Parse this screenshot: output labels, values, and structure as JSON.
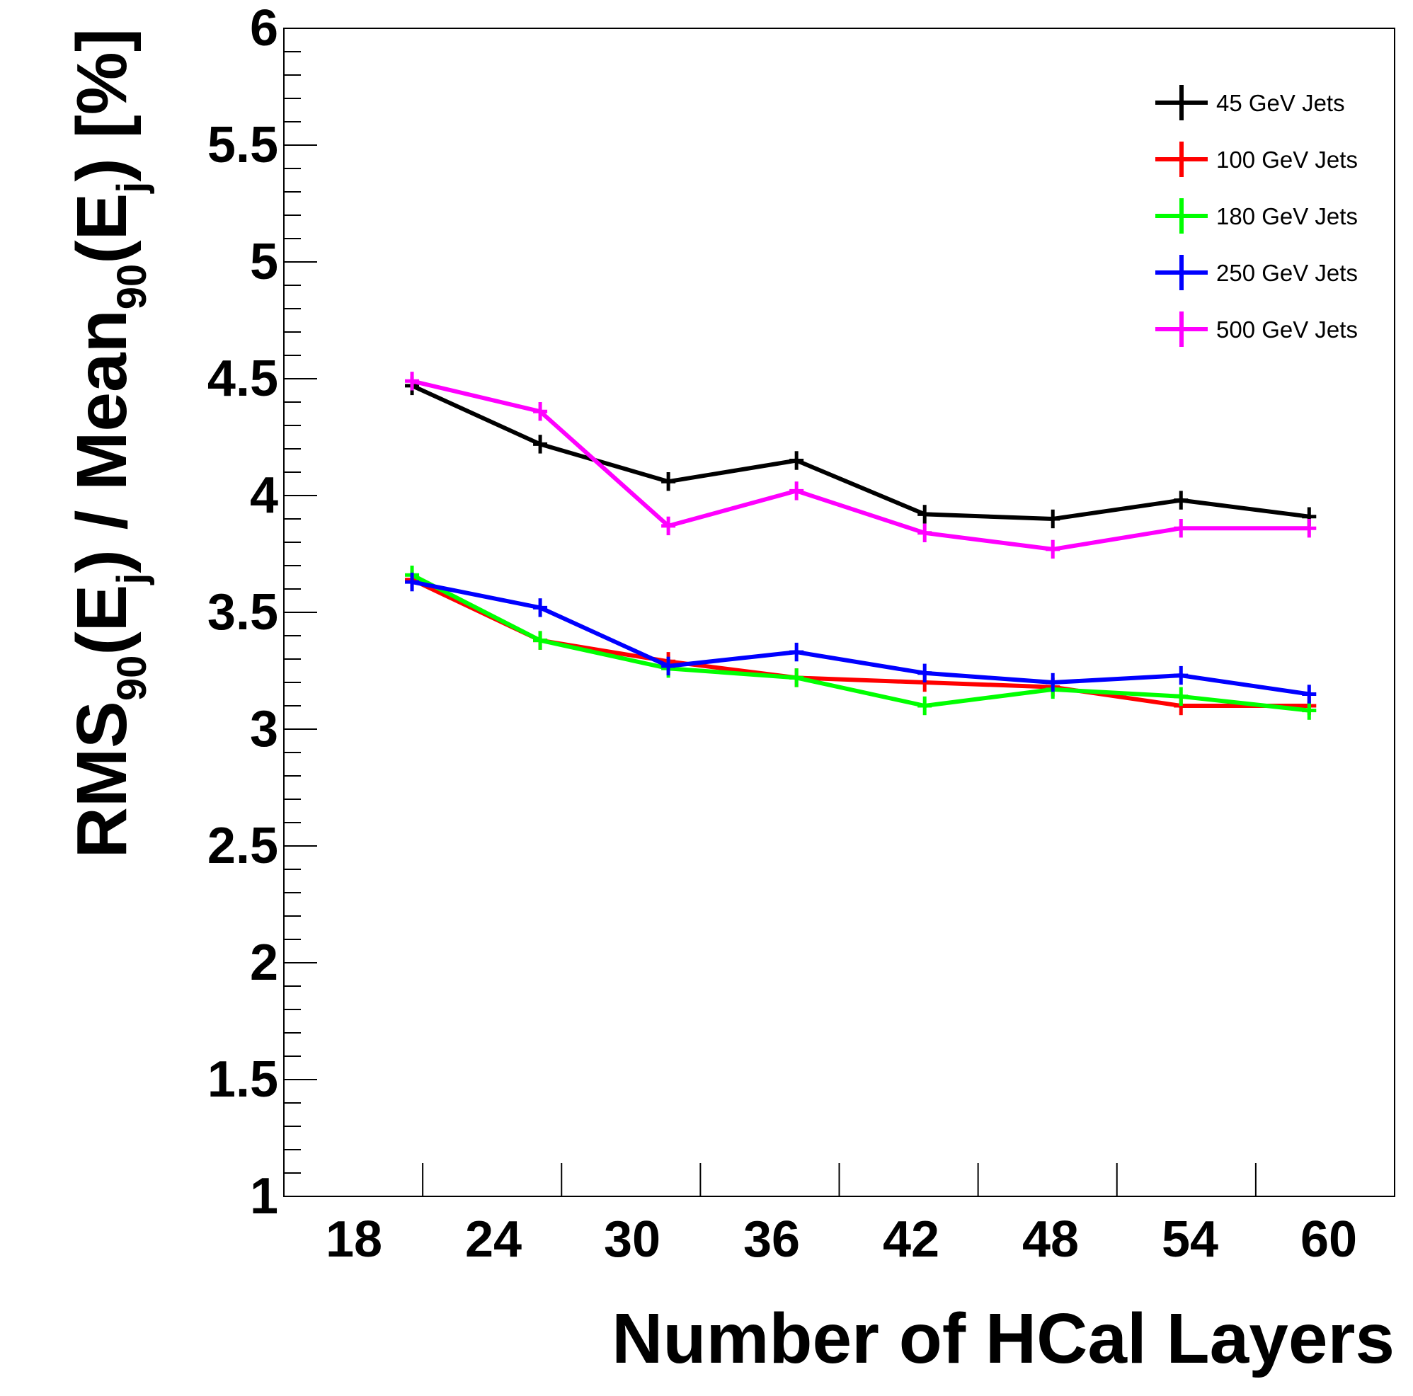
{
  "chart_data": {
    "type": "line",
    "xlabel": "Number of HCal Layers",
    "ylabel": {
      "parts": [
        "RMS",
        "90",
        "(E",
        "j",
        ") / Mean",
        "90",
        "(E",
        "j",
        ") [%]"
      ]
    },
    "xlim": [
      14,
      66
    ],
    "ylim": [
      1,
      6
    ],
    "x_ticks": [
      "18",
      "24",
      "30",
      "36",
      "42",
      "48",
      "54",
      "60"
    ],
    "y_ticks": [
      "1",
      "1.5",
      "2",
      "2.5",
      "3",
      "3.5",
      "4",
      "4.5",
      "5",
      "5.5",
      "6"
    ],
    "x": [
      20,
      26,
      32,
      38,
      44,
      50,
      56,
      62
    ],
    "grid": false,
    "legend_position": "top-right",
    "series": [
      {
        "name": "45 GeV Jets",
        "color": "#000000",
        "values": [
          4.47,
          4.22,
          4.06,
          4.15,
          3.92,
          3.9,
          3.98,
          3.91
        ],
        "errors": [
          0.04,
          0.04,
          0.04,
          0.04,
          0.04,
          0.04,
          0.04,
          0.04
        ]
      },
      {
        "name": "100 GeV Jets",
        "color": "#ff0000",
        "values": [
          3.64,
          3.38,
          3.29,
          3.22,
          3.2,
          3.18,
          3.1,
          3.1
        ],
        "errors": [
          0.04,
          0.04,
          0.04,
          0.04,
          0.04,
          0.04,
          0.04,
          0.04
        ]
      },
      {
        "name": "180 GeV Jets",
        "color": "#00ff00",
        "values": [
          3.66,
          3.38,
          3.26,
          3.22,
          3.1,
          3.17,
          3.14,
          3.08
        ],
        "errors": [
          0.04,
          0.04,
          0.04,
          0.04,
          0.04,
          0.04,
          0.04,
          0.04
        ]
      },
      {
        "name": "250 GeV Jets",
        "color": "#0000ff",
        "values": [
          3.63,
          3.52,
          3.27,
          3.33,
          3.24,
          3.2,
          3.23,
          3.15
        ],
        "errors": [
          0.04,
          0.04,
          0.04,
          0.04,
          0.04,
          0.04,
          0.04,
          0.04
        ]
      },
      {
        "name": "500 GeV Jets",
        "color": "#ff00ff",
        "values": [
          4.49,
          4.36,
          3.87,
          4.02,
          3.84,
          3.77,
          3.86,
          3.86
        ],
        "errors": [
          0.04,
          0.04,
          0.04,
          0.04,
          0.04,
          0.04,
          0.04,
          0.04
        ]
      }
    ]
  }
}
